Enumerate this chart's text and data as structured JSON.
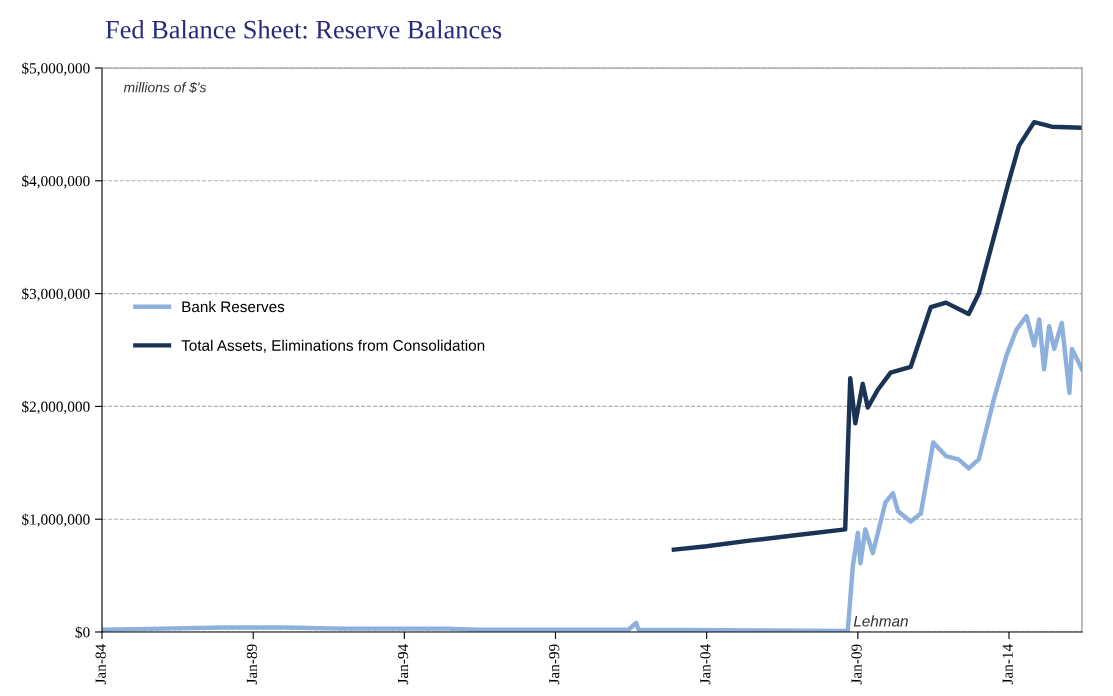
{
  "chart_data": {
    "type": "line",
    "title": "Fed Balance Sheet: Reserve Balances",
    "xlim": [
      "1984-01",
      "2016-06"
    ],
    "xticks": [
      {
        "value": "1984-01",
        "label": "Jan-84"
      },
      {
        "value": "1989-01",
        "label": "Jan-89"
      },
      {
        "value": "1994-01",
        "label": "Jan-94"
      },
      {
        "value": "1999-01",
        "label": "Jan-99"
      },
      {
        "value": "2004-01",
        "label": "Jan-04"
      },
      {
        "value": "2009-01",
        "label": "Jan-09"
      },
      {
        "value": "2014-01",
        "label": "Jan-14"
      }
    ],
    "ylim": [
      0,
      5000000
    ],
    "yticks": [
      {
        "value": 0,
        "label": "$0"
      },
      {
        "value": 1000000,
        "label": "$1,000,000"
      },
      {
        "value": 2000000,
        "label": "$2,000,000"
      },
      {
        "value": 3000000,
        "label": "$3,000,000"
      },
      {
        "value": 4000000,
        "label": "$4,000,000"
      },
      {
        "value": 5000000,
        "label": "$5,000,000"
      }
    ],
    "grid": "y",
    "legend": "left",
    "marker": "none",
    "line_style": "solid",
    "annotations": [
      "millions of $'s",
      {
        "text": "Lehman",
        "x": "2008-09",
        "y": 0
      }
    ],
    "series": [
      {
        "name": "Bank Reserves",
        "color": "#8db0dc",
        "x": [
          "1984-01",
          "1986-01",
          "1988-01",
          "1990-01",
          "1992-01",
          "1995-06",
          "1996-06",
          "2001-06",
          "2001-09",
          "2001-10",
          "2008-09",
          "2008-11",
          "2009-01",
          "2009-02",
          "2009-04",
          "2009-07",
          "2009-12",
          "2010-03",
          "2010-05",
          "2010-10",
          "2011-02",
          "2011-07",
          "2011-12",
          "2012-05",
          "2012-09",
          "2013-01",
          "2013-07",
          "2013-12",
          "2014-04",
          "2014-08",
          "2014-11",
          "2015-01",
          "2015-03",
          "2015-05",
          "2015-07",
          "2015-10",
          "2016-01",
          "2016-02",
          "2016-06"
        ],
        "values": [
          20000,
          30000,
          40000,
          40000,
          30000,
          30000,
          20000,
          20000,
          80000,
          20000,
          10000,
          580000,
          880000,
          610000,
          910000,
          700000,
          1150000,
          1230000,
          1070000,
          980000,
          1050000,
          1680000,
          1560000,
          1530000,
          1450000,
          1530000,
          2060000,
          2450000,
          2680000,
          2800000,
          2540000,
          2770000,
          2330000,
          2710000,
          2510000,
          2740000,
          2120000,
          2510000,
          2330000
        ]
      },
      {
        "name": "Total Assets, Eliminations from Consolidation",
        "color": "#1b3456",
        "x": [
          "2002-12",
          "2004-01",
          "2005-06",
          "2007-01",
          "2008-08",
          "2008-10",
          "2008-12",
          "2009-03",
          "2009-05",
          "2009-09",
          "2010-02",
          "2010-10",
          "2011-06",
          "2011-12",
          "2012-09",
          "2013-01",
          "2014-01",
          "2014-05",
          "2014-11",
          "2015-06",
          "2016-06"
        ],
        "values": [
          730000,
          760000,
          810000,
          860000,
          910000,
          2250000,
          1850000,
          2200000,
          1990000,
          2150000,
          2300000,
          2350000,
          2880000,
          2920000,
          2820000,
          3000000,
          4000000,
          4310000,
          4520000,
          4480000,
          4470000
        ]
      }
    ]
  }
}
